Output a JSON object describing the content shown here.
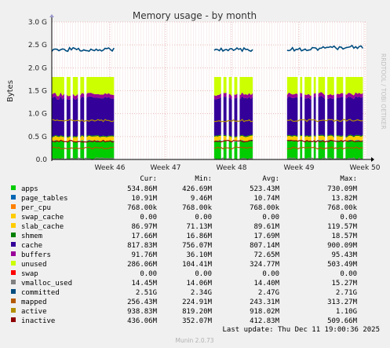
{
  "chart_data": {
    "type": "area",
    "title": "Memory usage - by month",
    "ylabel": "Bytes",
    "side_label": "RRDTOOL / TOBI OETIKER",
    "ylim": [
      0,
      3.0
    ],
    "y_ticks": [
      "0.0",
      "0.5 G",
      "1.0 G",
      "1.5 G",
      "2.0 G",
      "2.5 G",
      "3.0 G"
    ],
    "x_ticks": [
      "Week 46",
      "Week 47",
      "Week 48",
      "Week 49",
      "Week 50"
    ],
    "data_segments": [
      {
        "start_day": 0.0,
        "end_day": 8.7
      },
      {
        "start_day": 22.7,
        "end_day": 28.1
      },
      {
        "start_day": 32.9,
        "end_day": 43.5
      }
    ],
    "column_headers": [
      "Cur:",
      "Min:",
      "Avg:",
      "Max:"
    ],
    "series": [
      {
        "name": "apps",
        "color": "#00cc00",
        "cur": "534.86M",
        "min": "426.69M",
        "avg": "523.43M",
        "max": "730.09M",
        "typical_gb": 0.4
      },
      {
        "name": "page_tables",
        "color": "#0066b3",
        "cur": "10.91M",
        "min": "9.46M",
        "avg": "10.74M",
        "max": "13.82M",
        "typical_gb": 0.01
      },
      {
        "name": "per_cpu",
        "color": "#ff8000",
        "cur": "768.00k",
        "min": "768.00k",
        "avg": "768.00k",
        "max": "768.00k",
        "typical_gb": 0.0
      },
      {
        "name": "swap_cache",
        "color": "#ffcc00",
        "cur": "0.00",
        "min": "0.00",
        "avg": "0.00",
        "max": "0.00",
        "typical_gb": 0.0
      },
      {
        "name": "slab_cache",
        "color": "#ffcc00",
        "cur": "86.97M",
        "min": "71.13M",
        "avg": "89.61M",
        "max": "119.57M",
        "typical_gb": 0.09
      },
      {
        "name": "shmem",
        "color": "#008000",
        "cur": "17.66M",
        "min": "16.86M",
        "avg": "17.69M",
        "max": "18.57M",
        "typical_gb": 0.02
      },
      {
        "name": "cache",
        "color": "#330099",
        "cur": "817.83M",
        "min": "756.07M",
        "avg": "807.14M",
        "max": "900.09M",
        "typical_gb": 0.82
      },
      {
        "name": "buffers",
        "color": "#990099",
        "cur": "91.76M",
        "min": "36.10M",
        "avg": "72.65M",
        "max": "95.43M",
        "typical_gb": 0.08
      },
      {
        "name": "unused",
        "color": "#ccff00",
        "cur": "286.06M",
        "min": "104.41M",
        "avg": "324.77M",
        "max": "503.49M",
        "typical_gb": 0.38
      },
      {
        "name": "swap",
        "color": "#ff0000",
        "cur": "0.00",
        "min": "0.00",
        "avg": "0.00",
        "max": "0.00",
        "typical_gb": 0.0
      },
      {
        "name": "vmalloc_used",
        "color": "#808080",
        "cur": "14.45M",
        "min": "14.06M",
        "avg": "14.40M",
        "max": "15.27M",
        "typical_gb": 0.014
      },
      {
        "name": "committed",
        "color": "#004c7f",
        "cur": "2.51G",
        "min": "2.34G",
        "avg": "2.47G",
        "max": "2.71G",
        "typical_gb": 2.4
      },
      {
        "name": "mapped",
        "color": "#b35900",
        "cur": "256.43M",
        "min": "224.91M",
        "avg": "243.31M",
        "max": "313.27M",
        "typical_gb": 0.25
      },
      {
        "name": "active",
        "color": "#b38f00",
        "cur": "938.83M",
        "min": "819.20M",
        "avg": "918.02M",
        "max": "1.10G",
        "typical_gb": 0.85
      },
      {
        "name": "inactive",
        "color": "#8f0000",
        "cur": "436.06M",
        "min": "352.07M",
        "avg": "412.83M",
        "max": "509.66M",
        "typical_gb": 0.4
      }
    ],
    "last_update": "Last update: Thu Dec 11 19:00:36 2025",
    "footer": "Munin 2.0.73",
    "grid": true,
    "legend_placement": "below"
  }
}
